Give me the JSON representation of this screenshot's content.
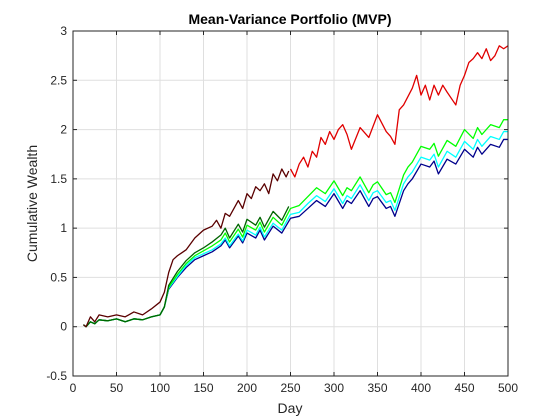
{
  "chart_data": {
    "type": "line",
    "title": "Mean-Variance Portfolio (MVP)",
    "xlabel": "Day",
    "ylabel": "Cumulative Wealth",
    "xlim": [
      0,
      500
    ],
    "ylim": [
      -0.5,
      3
    ],
    "xticks": [
      0,
      50,
      100,
      150,
      200,
      250,
      300,
      350,
      400,
      450,
      500
    ],
    "yticks": [
      -0.5,
      0,
      0.5,
      1,
      1.5,
      2,
      2.5,
      3
    ],
    "xtick_labels": [
      "0",
      "50",
      "100",
      "150",
      "200",
      "250",
      "300",
      "350",
      "400",
      "450",
      "500"
    ],
    "ytick_labels": [
      "-0.5",
      "0",
      "0.5",
      "1",
      "1.5",
      "2",
      "2.5",
      "3"
    ],
    "grid": true,
    "series": [
      {
        "color": "#00008b",
        "x": [
          12,
          15,
          20,
          25,
          30,
          40,
          50,
          60,
          70,
          80,
          90,
          100,
          105,
          110,
          120,
          130,
          140,
          150,
          160,
          170,
          175,
          180,
          190,
          195,
          200,
          210,
          215,
          220,
          230,
          240,
          250,
          260,
          270,
          280,
          290,
          300,
          310,
          315,
          320,
          330,
          340,
          345,
          350,
          360,
          365,
          370,
          380,
          385,
          390,
          400,
          410,
          415,
          420,
          430,
          440,
          450,
          460,
          465,
          470,
          480,
          490,
          495,
          500
        ],
        "y": [
          0.02,
          0.0,
          0.05,
          0.03,
          0.07,
          0.06,
          0.08,
          0.05,
          0.08,
          0.07,
          0.1,
          0.12,
          0.2,
          0.38,
          0.5,
          0.6,
          0.68,
          0.72,
          0.76,
          0.82,
          0.88,
          0.8,
          0.92,
          0.85,
          0.95,
          0.9,
          0.98,
          0.88,
          1.02,
          0.95,
          1.1,
          1.12,
          1.2,
          1.28,
          1.22,
          1.35,
          1.2,
          1.28,
          1.25,
          1.38,
          1.22,
          1.3,
          1.32,
          1.2,
          1.22,
          1.12,
          1.38,
          1.45,
          1.5,
          1.65,
          1.62,
          1.68,
          1.55,
          1.7,
          1.65,
          1.8,
          1.72,
          1.82,
          1.75,
          1.85,
          1.82,
          1.9,
          1.9
        ]
      },
      {
        "color": "#00ffff",
        "x": [
          12,
          15,
          20,
          25,
          30,
          40,
          50,
          60,
          70,
          80,
          90,
          100,
          105,
          110,
          120,
          130,
          140,
          150,
          160,
          170,
          175,
          180,
          190,
          195,
          200,
          210,
          215,
          220,
          230,
          240,
          250,
          260,
          270,
          280,
          290,
          300,
          310,
          315,
          320,
          330,
          340,
          345,
          350,
          360,
          365,
          370,
          380,
          385,
          390,
          400,
          410,
          415,
          420,
          430,
          440,
          450,
          460,
          465,
          470,
          480,
          490,
          495,
          500
        ],
        "y": [
          0.02,
          0.0,
          0.05,
          0.03,
          0.07,
          0.06,
          0.08,
          0.05,
          0.08,
          0.07,
          0.1,
          0.12,
          0.2,
          0.39,
          0.51,
          0.62,
          0.7,
          0.74,
          0.78,
          0.84,
          0.9,
          0.82,
          0.94,
          0.87,
          0.98,
          0.93,
          1.01,
          0.91,
          1.05,
          0.98,
          1.14,
          1.16,
          1.25,
          1.33,
          1.27,
          1.4,
          1.25,
          1.33,
          1.3,
          1.44,
          1.28,
          1.36,
          1.38,
          1.26,
          1.28,
          1.18,
          1.45,
          1.52,
          1.57,
          1.72,
          1.69,
          1.75,
          1.62,
          1.78,
          1.72,
          1.88,
          1.8,
          1.9,
          1.83,
          1.93,
          1.9,
          1.98,
          1.98
        ]
      },
      {
        "color": "#00ff00",
        "x": [
          12,
          15,
          20,
          25,
          30,
          40,
          50,
          60,
          70,
          80,
          90,
          100,
          105,
          110,
          120,
          130,
          140,
          150,
          160,
          170,
          175,
          180,
          190,
          195,
          200,
          210,
          215,
          220,
          230,
          240,
          250,
          260,
          270,
          280,
          290,
          300,
          310,
          315,
          320,
          330,
          340,
          345,
          350,
          360,
          365,
          370,
          380,
          385,
          390,
          400,
          410,
          415,
          420,
          430,
          440,
          450,
          460,
          465,
          470,
          480,
          490,
          495,
          500
        ],
        "y": [
          0.02,
          0.0,
          0.05,
          0.03,
          0.07,
          0.06,
          0.08,
          0.05,
          0.08,
          0.07,
          0.1,
          0.12,
          0.2,
          0.4,
          0.53,
          0.64,
          0.72,
          0.77,
          0.82,
          0.88,
          0.95,
          0.86,
          0.99,
          0.91,
          1.03,
          0.98,
          1.06,
          0.96,
          1.11,
          1.03,
          1.2,
          1.23,
          1.32,
          1.41,
          1.35,
          1.48,
          1.33,
          1.41,
          1.38,
          1.52,
          1.36,
          1.44,
          1.47,
          1.34,
          1.36,
          1.26,
          1.54,
          1.62,
          1.67,
          1.83,
          1.8,
          1.86,
          1.73,
          1.89,
          1.83,
          2.0,
          1.91,
          2.02,
          1.95,
          2.05,
          2.02,
          2.1,
          2.1
        ]
      },
      {
        "color": "#006400",
        "x": [
          12,
          15,
          20,
          25,
          30,
          40,
          50,
          60,
          70,
          80,
          90,
          100,
          105,
          110,
          120,
          130,
          140,
          150,
          160,
          170,
          175,
          180,
          190,
          195,
          200,
          210,
          215,
          220,
          230,
          240,
          248
        ],
        "y": [
          0.02,
          0.0,
          0.05,
          0.03,
          0.07,
          0.06,
          0.08,
          0.05,
          0.08,
          0.07,
          0.1,
          0.12,
          0.2,
          0.42,
          0.56,
          0.67,
          0.75,
          0.8,
          0.86,
          0.93,
          1.0,
          0.9,
          1.04,
          0.96,
          1.09,
          1.03,
          1.11,
          1.01,
          1.17,
          1.08,
          1.22
        ]
      },
      {
        "color": "#e00000",
        "x": [
          250,
          255,
          260,
          265,
          270,
          275,
          280,
          285,
          290,
          295,
          300,
          305,
          310,
          315,
          320,
          330,
          340,
          350,
          360,
          365,
          370,
          375,
          380,
          390,
          395,
          400,
          405,
          410,
          415,
          420,
          425,
          430,
          440,
          445,
          450,
          455,
          460,
          465,
          470,
          475,
          480,
          485,
          490,
          495,
          500
        ],
        "y": [
          1.6,
          1.52,
          1.65,
          1.72,
          1.62,
          1.78,
          1.72,
          1.92,
          1.85,
          1.98,
          1.9,
          2.0,
          2.05,
          1.95,
          1.8,
          2.02,
          1.92,
          2.15,
          1.98,
          1.93,
          1.85,
          2.2,
          2.25,
          2.42,
          2.55,
          2.35,
          2.45,
          2.3,
          2.45,
          2.35,
          2.45,
          2.38,
          2.25,
          2.45,
          2.55,
          2.68,
          2.72,
          2.78,
          2.72,
          2.82,
          2.7,
          2.75,
          2.85,
          2.82,
          2.85
        ]
      },
      {
        "color": "#5a0000",
        "x": [
          12,
          15,
          20,
          25,
          30,
          40,
          50,
          60,
          70,
          80,
          90,
          100,
          105,
          110,
          115,
          120,
          125,
          130,
          140,
          150,
          160,
          165,
          170,
          175,
          180,
          190,
          195,
          200,
          205,
          210,
          215,
          220,
          225,
          230,
          235,
          240,
          245,
          248
        ],
        "y": [
          0.02,
          0.0,
          0.1,
          0.05,
          0.12,
          0.1,
          0.12,
          0.1,
          0.15,
          0.12,
          0.18,
          0.25,
          0.35,
          0.55,
          0.68,
          0.72,
          0.75,
          0.78,
          0.9,
          0.98,
          1.02,
          1.08,
          1.0,
          1.15,
          1.12,
          1.28,
          1.2,
          1.35,
          1.3,
          1.42,
          1.38,
          1.45,
          1.35,
          1.55,
          1.48,
          1.6,
          1.52,
          1.58
        ]
      }
    ]
  }
}
